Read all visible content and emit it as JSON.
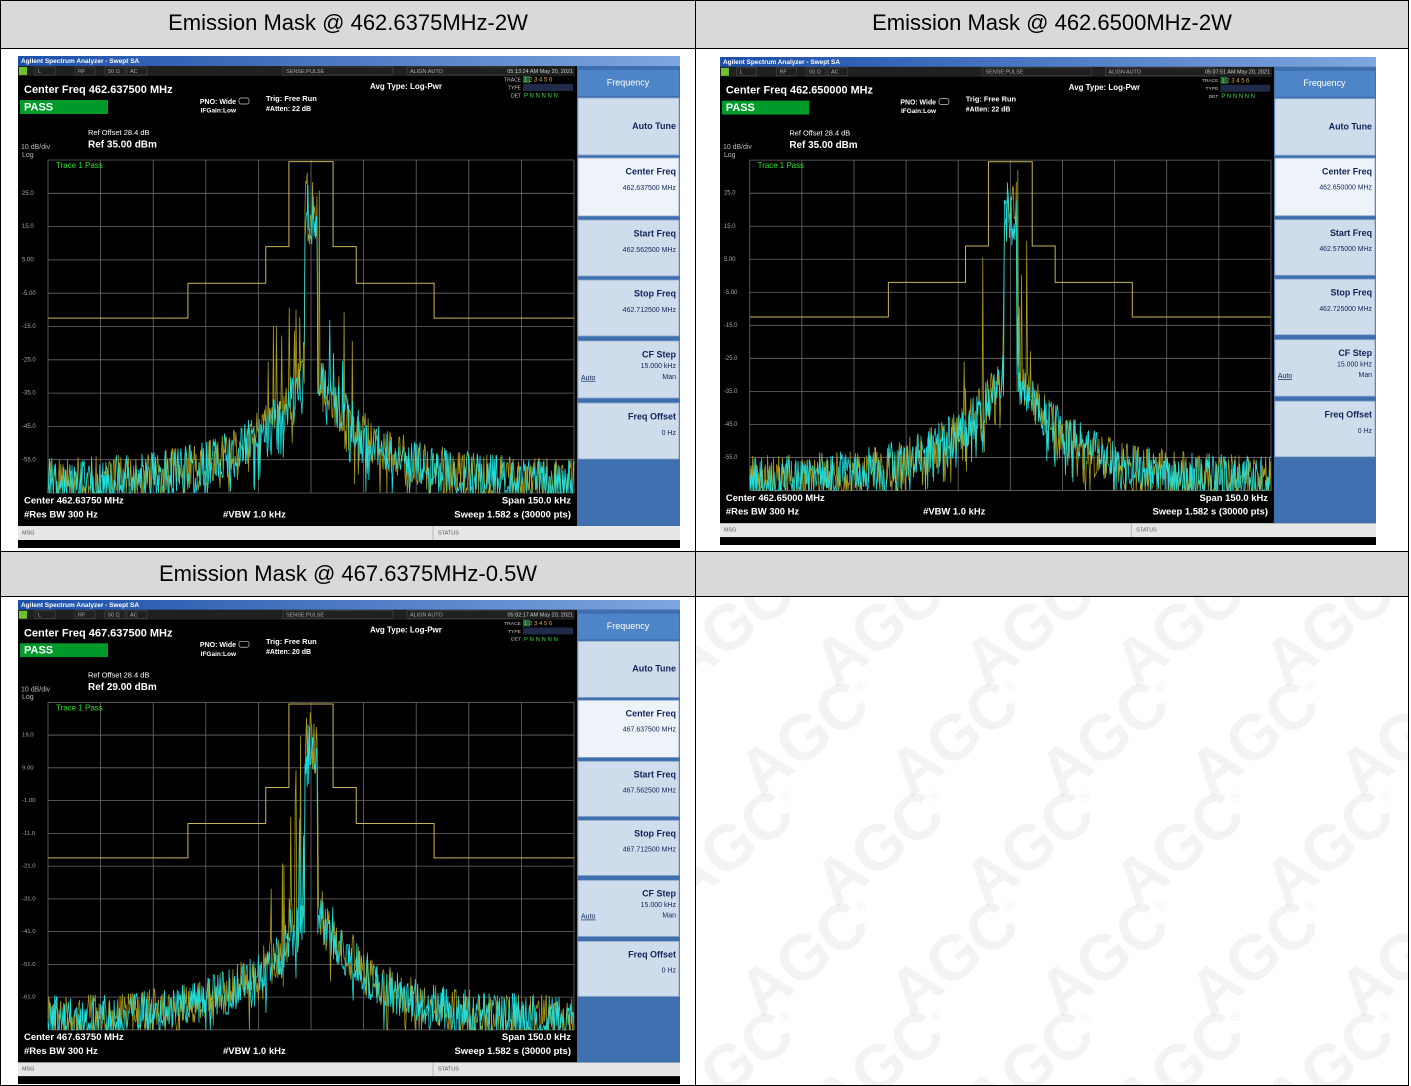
{
  "table": {
    "rows": [
      {
        "cells": [
          {
            "title": "Emission Mask @ 462.6375MHz-2W"
          },
          {
            "title": "Emission Mask @ 462.6500MHz-2W"
          }
        ]
      },
      {
        "cells": [
          {
            "screen": {
              "app_title": "Agilent Spectrum Analyzer - Swept SA",
              "status": [
                "L",
                "RF",
                "50 Ω",
                "AC",
                "SENSE:PULSE",
                "ALIGN AUTO"
              ],
              "timestamp": "05:13:24 AM May 20, 2021",
              "center_freq": "Center Freq 462.637500 MHz",
              "verdict": "PASS",
              "pno": "PNO: Wide",
              "ifgain": "IFGain:Low",
              "trig": "Trig: Free Run",
              "atten": "#Atten: 22 dB",
              "avg_type": "Avg Type: Log-Pwr",
              "trace_labels": [
                "TRACE",
                "TYPE",
                "DET"
              ],
              "trace_nums": "1 2 3 4 5 6",
              "det_row": "P N N N N N",
              "ref_offset": "Ref Offset 28.4 dB",
              "scale": "10 dB/div",
              "ref_level": "Ref 35.00 dBm",
              "scale_type": "Log",
              "trace_status": "Trace 1 Pass",
              "y_labels": [
                "25.0",
                "15.0",
                "5.00",
                "-5.00",
                "-15.0",
                "-25.0",
                "-35.0",
                "-45.0",
                "-55.0"
              ],
              "center": "Center 462.63750 MHz",
              "res_bw": "#Res BW 300 Hz",
              "vbw": "#VBW 1.0 kHz",
              "span": "Span 150.0 kHz",
              "sweep": "Sweep  1.582 s (30000 pts)",
              "msg": "MSG",
              "status_label": "STATUS",
              "menu_title": "Frequency",
              "softkeys": [
                {
                  "label": "Auto Tune"
                },
                {
                  "label": "Center Freq",
                  "value": "462.637500 MHz"
                },
                {
                  "label": "Start Freq",
                  "value": "462.562500 MHz"
                },
                {
                  "label": "Stop Freq",
                  "value": "462.712500 MHz"
                },
                {
                  "label": "CF Step",
                  "value": "15.000 kHz",
                  "options": [
                    "Auto",
                    "Man"
                  ]
                },
                {
                  "label": "Freq Offset",
                  "value": "0 Hz"
                }
              ]
            }
          },
          {
            "screen": {
              "app_title": "Agilent Spectrum Analyzer - Swept SA",
              "status": [
                "L",
                "RF",
                "50 Ω",
                "AC",
                "SENSE:PULSE",
                "ALIGN AUTO"
              ],
              "timestamp": "05:07:51 AM May 20, 2021",
              "center_freq": "Center Freq 462.650000 MHz",
              "verdict": "PASS",
              "pno": "PNO: Wide",
              "ifgain": "IFGain:Low",
              "trig": "Trig: Free Run",
              "atten": "#Atten: 22 dB",
              "avg_type": "Avg Type: Log-Pwr",
              "trace_labels": [
                "TRACE",
                "TYPE",
                "DET"
              ],
              "trace_nums": "1 2 3 4 5 6",
              "det_row": "P N N N N N",
              "ref_offset": "Ref Offset 28.4 dB",
              "scale": "10 dB/div",
              "ref_level": "Ref 35.00 dBm",
              "scale_type": "Log",
              "trace_status": "Trace 1 Pass",
              "y_labels": [
                "25.0",
                "15.0",
                "5.00",
                "-5.00",
                "-15.0",
                "-25.0",
                "-35.0",
                "-45.0",
                "-55.0"
              ],
              "center": "Center 462.65000 MHz",
              "res_bw": "#Res BW 300 Hz",
              "vbw": "#VBW 1.0 kHz",
              "span": "Span 150.0 kHz",
              "sweep": "Sweep  1.582 s (30000 pts)",
              "msg": "MSG",
              "status_label": "STATUS",
              "menu_title": "Frequency",
              "softkeys": [
                {
                  "label": "Auto Tune"
                },
                {
                  "label": "Center Freq",
                  "value": "462.650000 MHz"
                },
                {
                  "label": "Start Freq",
                  "value": "462.575000 MHz"
                },
                {
                  "label": "Stop Freq",
                  "value": "462.725000 MHz"
                },
                {
                  "label": "CF Step",
                  "value": "15.000 kHz",
                  "options": [
                    "Auto",
                    "Man"
                  ]
                },
                {
                  "label": "Freq Offset",
                  "value": "0 Hz"
                }
              ]
            }
          }
        ]
      },
      {
        "cells": [
          {
            "title": "Emission Mask @ 467.6375MHz-0.5W"
          }
        ]
      },
      {
        "cells": [
          {
            "screen": {
              "app_title": "Agilent Spectrum Analyzer - Swept SA",
              "status": [
                "L",
                "RF",
                "50 Ω",
                "AC",
                "SENSE:PULSE",
                "ALIGN AUTO"
              ],
              "timestamp": "05:02:17 AM May 20, 2021",
              "center_freq": "Center Freq 467.637500 MHz",
              "verdict": "PASS",
              "pno": "PNO: Wide",
              "ifgain": "IFGain:Low",
              "trig": "Trig: Free Run",
              "atten": "#Atten: 20 dB",
              "avg_type": "Avg Type: Log-Pwr",
              "trace_labels": [
                "TRACE",
                "TYPE",
                "DET"
              ],
              "trace_nums": "1 2 3 4 5 6",
              "det_row": "P N N N N N",
              "ref_offset": "Ref Offset 28.4 dB",
              "scale": "10 dB/div",
              "ref_level": "Ref 29.00 dBm",
              "scale_type": "Log",
              "trace_status": "Trace 1 Pass",
              "y_labels": [
                "19.0",
                "9.00",
                "-1.00",
                "-11.0",
                "-21.0",
                "-31.0",
                "-41.0",
                "-51.0",
                "-61.0"
              ],
              "center": "Center 467.63750 MHz",
              "res_bw": "#Res BW 300 Hz",
              "vbw": "#VBW 1.0 kHz",
              "span": "Span 150.0 kHz",
              "sweep": "Sweep  1.582 s (30000 pts)",
              "msg": "MSG",
              "status_label": "STATUS",
              "menu_title": "Frequency",
              "softkeys": [
                {
                  "label": "Auto Tune"
                },
                {
                  "label": "Center Freq",
                  "value": "467.637500 MHz"
                },
                {
                  "label": "Start Freq",
                  "value": "467.562500 MHz"
                },
                {
                  "label": "Stop Freq",
                  "value": "467.712500 MHz"
                },
                {
                  "label": "CF Step",
                  "value": "15.000 kHz",
                  "options": [
                    "Auto",
                    "Man"
                  ]
                },
                {
                  "label": "Freq Offset",
                  "value": "0 Hz"
                }
              ]
            }
          }
        ]
      }
    ]
  },
  "watermark": "AGC",
  "watermark_mark": "®"
}
